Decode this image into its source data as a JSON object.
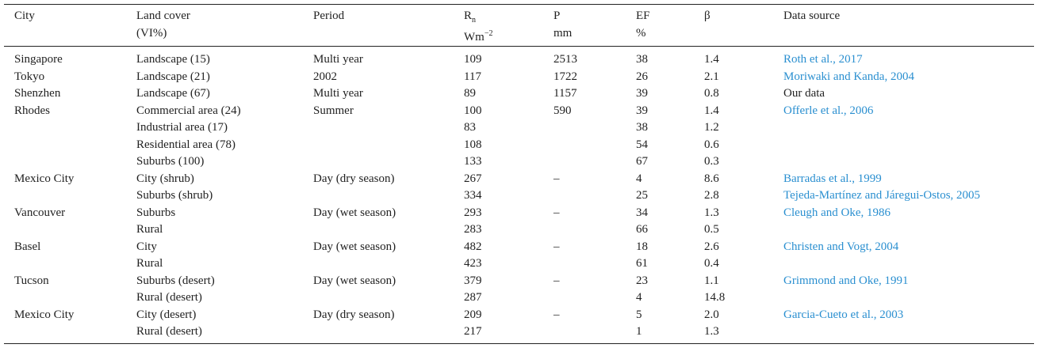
{
  "table": {
    "header": [
      {
        "top": "City"
      },
      {
        "top": "Land cover",
        "bottom": "(VI%)"
      },
      {
        "top": "Period"
      },
      {
        "top": {
          "base": "R",
          "sub": "n"
        },
        "bottom": {
          "base": "Wm",
          "sup": "−2"
        }
      },
      {
        "top": "P",
        "bottom": "mm"
      },
      {
        "top": "EF",
        "bottom": "%"
      },
      {
        "top": "β"
      },
      {
        "top": "Data source"
      }
    ],
    "link_color": "#2a8fd0",
    "rows": [
      [
        "Singapore",
        "Landscape (15)",
        "Multi year",
        "109",
        "2513",
        "38",
        "1.4",
        {
          "text": "Roth et al., 2017",
          "link": true
        }
      ],
      [
        "Tokyo",
        "Landscape (21)",
        "2002",
        "117",
        "1722",
        "26",
        "2.1",
        {
          "text": "Moriwaki and Kanda, 2004",
          "link": true
        }
      ],
      [
        "Shenzhen",
        "Landscape (67)",
        "Multi year",
        "89",
        "1157",
        "39",
        "0.8",
        {
          "text": "Our data",
          "link": false
        }
      ],
      [
        "Rhodes",
        "Commercial area (24)",
        "Summer",
        "100",
        "590",
        "39",
        "1.4",
        {
          "text": "Offerle et al., 2006",
          "link": true
        }
      ],
      [
        null,
        "Industrial area (17)",
        null,
        "83",
        null,
        "38",
        "1.2",
        null
      ],
      [
        null,
        "Residential area (78)",
        null,
        "108",
        null,
        "54",
        "0.6",
        null
      ],
      [
        null,
        "Suburbs (100)",
        null,
        "133",
        null,
        "67",
        "0.3",
        null
      ],
      [
        "Mexico City",
        "City (shrub)",
        "Day (dry season)",
        "267",
        "–",
        "4",
        "8.6",
        {
          "text": "Barradas et al., 1999",
          "link": true
        }
      ],
      [
        null,
        "Suburbs (shrub)",
        null,
        "334",
        null,
        "25",
        "2.8",
        {
          "text": "Tejeda-Martínez and Járegui-Ostos, 2005",
          "link": true
        }
      ],
      [
        "Vancouver",
        "Suburbs",
        "Day (wet season)",
        "293",
        "–",
        "34",
        "1.3",
        {
          "text": "Cleugh and Oke, 1986",
          "link": true
        }
      ],
      [
        null,
        "Rural",
        null,
        "283",
        null,
        "66",
        "0.5",
        null
      ],
      [
        "Basel",
        "City",
        "Day (wet season)",
        "482",
        "–",
        "18",
        "2.6",
        {
          "text": "Christen and Vogt, 2004",
          "link": true
        }
      ],
      [
        null,
        "Rural",
        null,
        "423",
        null,
        "61",
        "0.4",
        null
      ],
      [
        "Tucson",
        "Suburbs (desert)",
        "Day (wet season)",
        "379",
        "–",
        "23",
        "1.1",
        {
          "text": "Grimmond and Oke, 1991",
          "link": true
        }
      ],
      [
        null,
        "Rural (desert)",
        null,
        "287",
        null,
        "4",
        "14.8",
        null
      ],
      [
        "Mexico City",
        "City (desert)",
        "Day (dry season)",
        "209",
        "–",
        "5",
        "2.0",
        {
          "text": "Garcia-Cueto et al., 2003",
          "link": true
        }
      ],
      [
        null,
        "Rural (desert)",
        null,
        "217",
        null,
        "1",
        "1.3",
        null
      ]
    ]
  }
}
